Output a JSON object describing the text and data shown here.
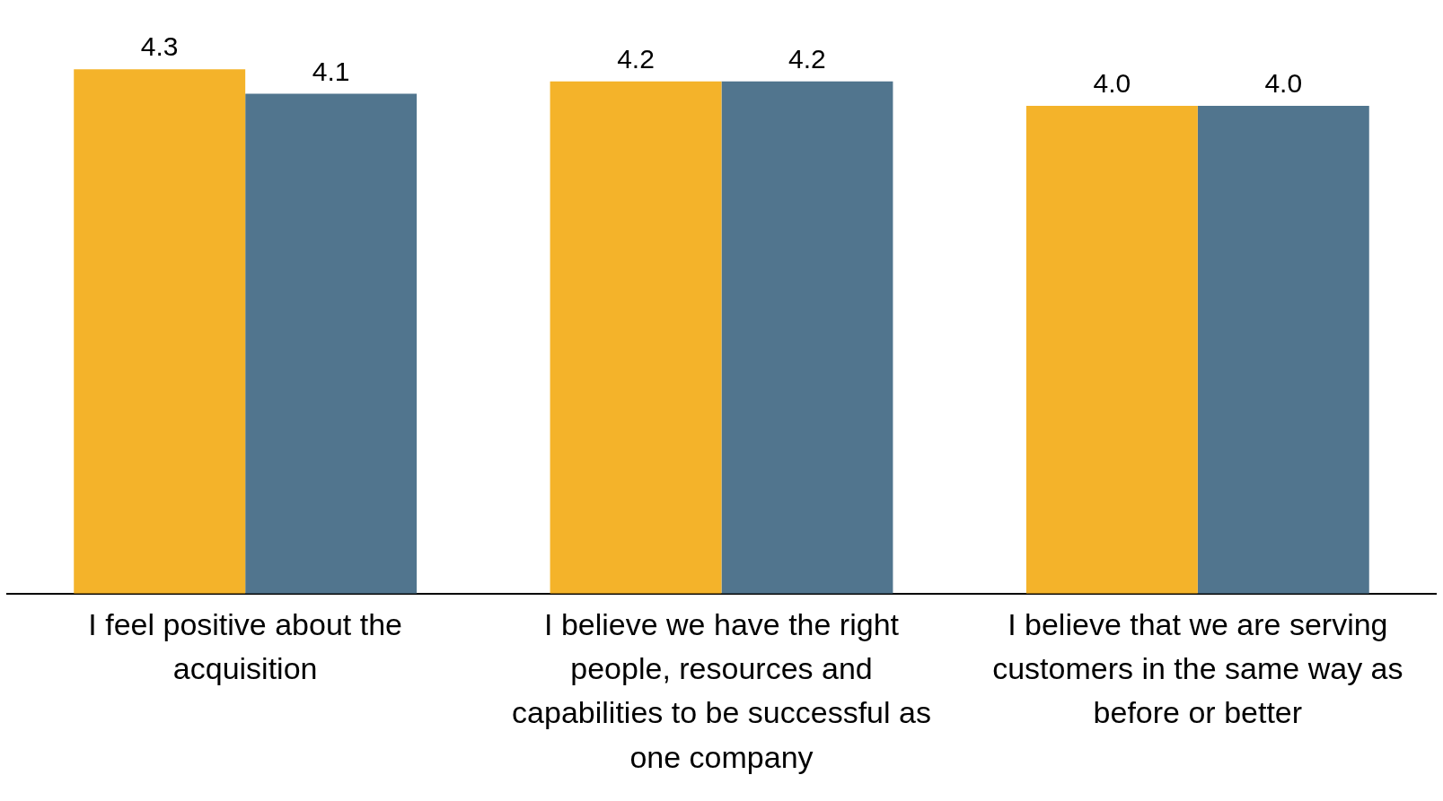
{
  "chart_data": {
    "type": "bar",
    "categories": [
      "I feel positive about the acquisition",
      "I believe we have the right people, resources and capabilities to be successful as one company",
      "I believe that we are serving customers in the same way as before or better"
    ],
    "series": [
      {
        "color": "#f4b32a",
        "values": [
          4.3,
          4.2,
          4.0
        ],
        "value_labels": [
          "4.3",
          "4.2",
          "4.0"
        ]
      },
      {
        "color": "#51758e",
        "values": [
          4.1,
          4.2,
          4.0
        ],
        "value_labels": [
          "4.1",
          "4.2",
          "4.0"
        ]
      }
    ],
    "grid": false,
    "legend": false
  }
}
